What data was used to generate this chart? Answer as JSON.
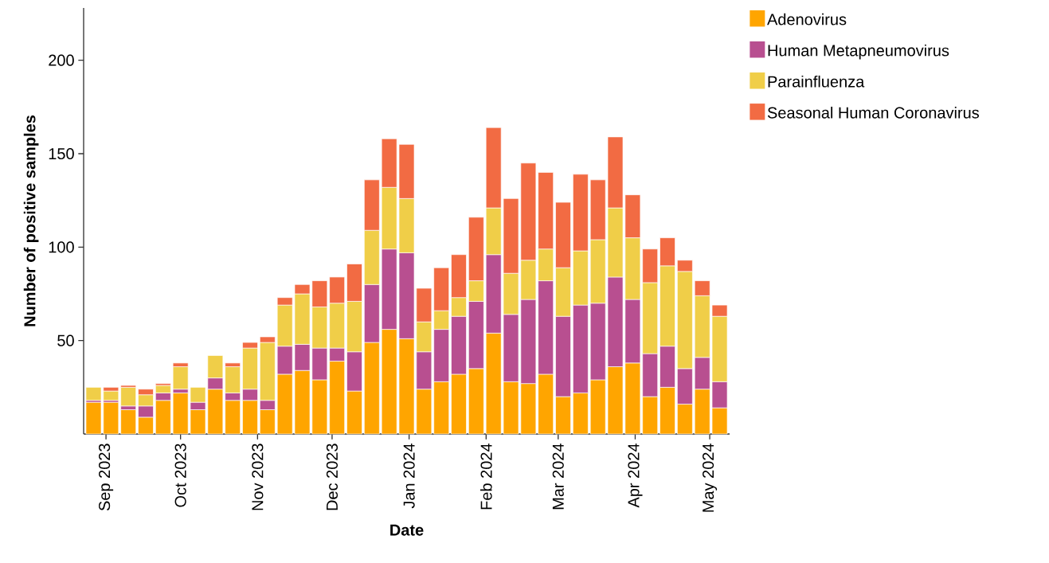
{
  "chart_data": {
    "type": "bar",
    "stacked": true,
    "xlabel": "Date",
    "ylabel": "Number of positive samples",
    "legend": "right",
    "x": [
      "2023-08-27",
      "2023-09-03",
      "2023-09-10",
      "2023-09-17",
      "2023-09-24",
      "2023-10-01",
      "2023-10-08",
      "2023-10-15",
      "2023-10-22",
      "2023-10-29",
      "2023-11-05",
      "2023-11-12",
      "2023-11-19",
      "2023-11-26",
      "2023-12-03",
      "2023-12-10",
      "2023-12-17",
      "2023-12-24",
      "2023-12-31",
      "2024-01-07",
      "2024-01-14",
      "2024-01-21",
      "2024-01-28",
      "2024-02-04",
      "2024-02-11",
      "2024-02-18",
      "2024-02-25",
      "2024-03-03",
      "2024-03-10",
      "2024-03-17",
      "2024-03-24",
      "2024-03-31",
      "2024-04-07",
      "2024-04-14",
      "2024-04-21",
      "2024-04-28",
      "2024-05-05"
    ],
    "xlim": [
      "2023-08-23",
      "2024-05-09"
    ],
    "xticks": [
      {
        "value": "2023-09-01",
        "label": "Sep 2023"
      },
      {
        "value": "2023-10-01",
        "label": "Oct 2023"
      },
      {
        "value": "2023-11-01",
        "label": "Nov 2023"
      },
      {
        "value": "2023-12-01",
        "label": "Dec 2023"
      },
      {
        "value": "2024-01-01",
        "label": "Jan 2024"
      },
      {
        "value": "2024-02-01",
        "label": "Feb 2024"
      },
      {
        "value": "2024-03-01",
        "label": "Mar 2024"
      },
      {
        "value": "2024-04-01",
        "label": "Apr 2024"
      },
      {
        "value": "2024-05-01",
        "label": "May 2024"
      }
    ],
    "ylim": [
      0,
      228
    ],
    "yticks": [
      50,
      100,
      150,
      200
    ],
    "series": [
      {
        "name": "Adenovirus",
        "color": "#ffa500",
        "values": [
          17,
          17,
          13,
          9,
          18,
          22,
          13,
          24,
          18,
          18,
          13,
          32,
          34,
          29,
          39,
          23,
          49,
          56,
          51,
          24,
          28,
          32,
          35,
          54,
          28,
          27,
          32,
          20,
          22,
          29,
          36,
          38,
          20,
          25,
          16,
          24,
          14
        ]
      },
      {
        "name": "Human Metapneumovirus",
        "color": "#b84f90",
        "values": [
          1,
          1,
          2,
          6,
          4,
          2,
          4,
          6,
          4,
          6,
          5,
          15,
          14,
          17,
          7,
          21,
          31,
          43,
          46,
          20,
          28,
          31,
          36,
          42,
          36,
          45,
          50,
          43,
          47,
          41,
          48,
          34,
          23,
          22,
          19,
          17,
          14
        ]
      },
      {
        "name": "Parainfluenza",
        "color": "#f0ce48",
        "values": [
          7,
          5,
          10,
          6,
          4,
          12,
          8,
          12,
          14,
          22,
          31,
          22,
          27,
          22,
          24,
          27,
          29,
          33,
          29,
          16,
          10,
          10,
          11,
          25,
          22,
          21,
          17,
          26,
          29,
          34,
          37,
          33,
          38,
          43,
          52,
          33,
          35
        ]
      },
      {
        "name": "Seasonal Human Coronavirus",
        "color": "#f26b43",
        "values": [
          null,
          2,
          1,
          3,
          1,
          2,
          null,
          null,
          2,
          3,
          3,
          4,
          5,
          14,
          14,
          20,
          27,
          26,
          29,
          18,
          23,
          23,
          34,
          43,
          40,
          52,
          41,
          35,
          41,
          32,
          38,
          23,
          18,
          15,
          6,
          8,
          6
        ]
      }
    ]
  }
}
